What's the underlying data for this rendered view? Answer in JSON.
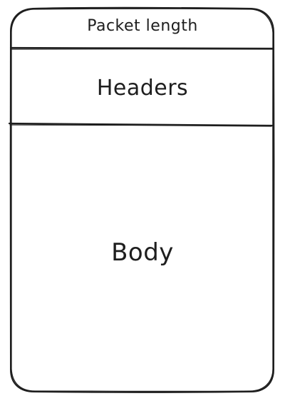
{
  "diagram": {
    "sections": [
      {
        "label": "Packet length"
      },
      {
        "label": "Headers"
      },
      {
        "label": "Body"
      }
    ]
  }
}
